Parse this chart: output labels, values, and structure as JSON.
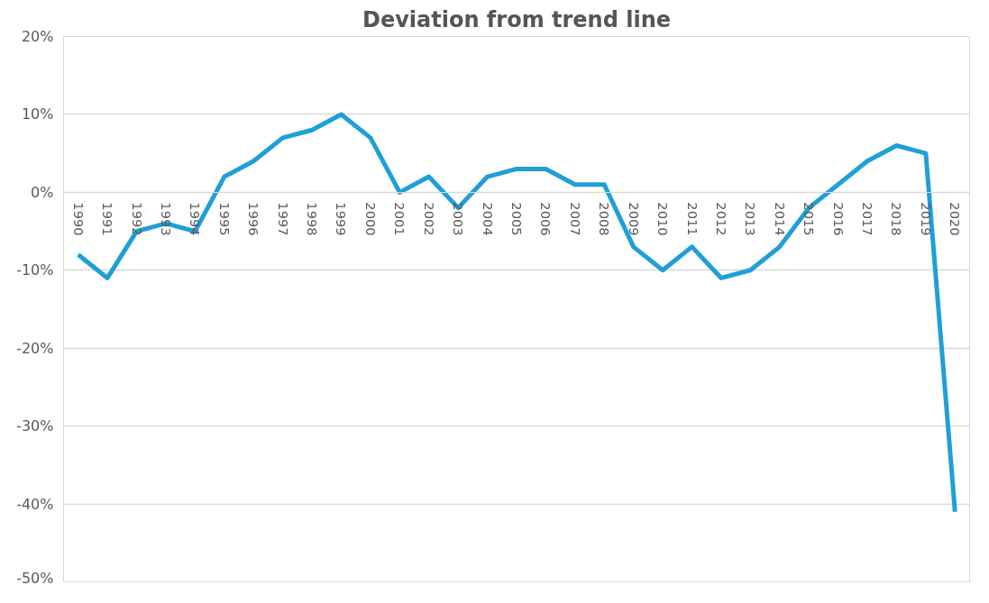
{
  "chart_data": {
    "type": "line",
    "title": "Deviation from trend line",
    "categories": [
      "1990",
      "1991",
      "1992",
      "1993",
      "1994",
      "1995",
      "1996",
      "1997",
      "1998",
      "1999",
      "2000",
      "2001",
      "2002",
      "2003",
      "2004",
      "2005",
      "2006",
      "2007",
      "2008",
      "2009",
      "2010",
      "2011",
      "2012",
      "2013",
      "2014",
      "2015",
      "2016",
      "2017",
      "2018",
      "2019",
      "2020"
    ],
    "series": [
      {
        "color": "#1f9fd8",
        "values": [
          -8,
          -11,
          -5,
          -4,
          -5,
          2,
          4,
          7,
          8,
          10,
          7,
          0,
          2,
          -2,
          2,
          3,
          3,
          1,
          1,
          -7,
          -10,
          -7,
          -11,
          -10,
          -7,
          -2,
          1,
          4,
          6,
          5,
          -41
        ]
      }
    ],
    "ylim": [
      -50,
      20
    ],
    "yticks": [
      {
        "value": -50,
        "label": "-50%"
      },
      {
        "value": -40,
        "label": "-40%"
      },
      {
        "value": -30,
        "label": "-30%"
      },
      {
        "value": -20,
        "label": "-20%"
      },
      {
        "value": -10,
        "label": "-10%"
      },
      {
        "value": 0,
        "label": "0%"
      },
      {
        "value": 10,
        "label": "10%"
      },
      {
        "value": 20,
        "label": "20%"
      }
    ],
    "grid": "y",
    "marker": "none",
    "line_style": "solid"
  }
}
